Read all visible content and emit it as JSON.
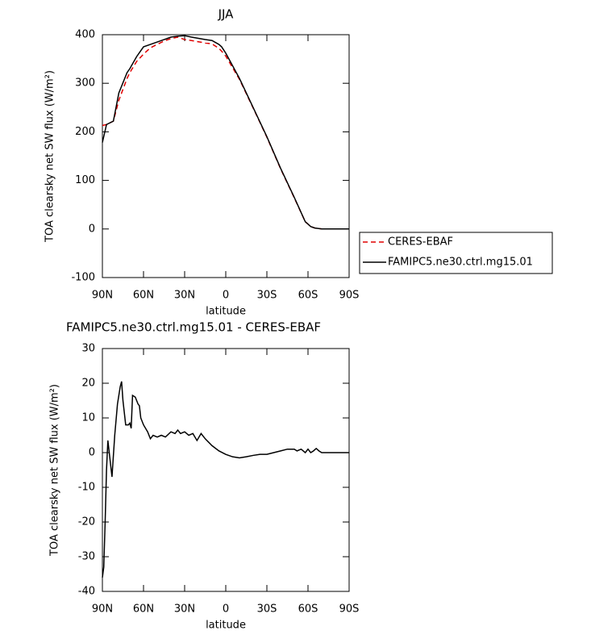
{
  "chart_data": [
    {
      "type": "line",
      "title": "JJA",
      "xlabel": "latitude",
      "ylabel": "TOA clearsky net SW flux (W/m²)",
      "x": [
        90,
        87,
        82,
        78,
        72,
        70,
        65,
        60,
        55,
        50,
        45,
        40,
        35,
        30,
        25,
        15,
        10,
        5,
        3,
        0,
        -10,
        -20,
        -30,
        -40,
        -50,
        -58,
        -62,
        -65,
        -70,
        -90
      ],
      "series": [
        {
          "name": "CERES-EBAF",
          "color": "#e00000",
          "linestyle": "dashed",
          "values": [
            213,
            215,
            222,
            265,
            310,
            322,
            345,
            360,
            373,
            380,
            387,
            392,
            395,
            390,
            388,
            383,
            381,
            372,
            366,
            356,
            308,
            249,
            189,
            124,
            64,
            15,
            5,
            2,
            0,
            0
          ]
        },
        {
          "name": "FAMIPC5.ne30.ctrl.mg15.01",
          "color": "#000000",
          "linestyle": "solid",
          "values": [
            178,
            215,
            222,
            280,
            322,
            330,
            355,
            375,
            380,
            385,
            390,
            395,
            397,
            398,
            395,
            390,
            388,
            380,
            375,
            362,
            310,
            250,
            190,
            125,
            65,
            15,
            5,
            2,
            0,
            0
          ]
        }
      ],
      "xlim": [
        90,
        -90
      ],
      "xticks": [
        {
          "value": 90,
          "label": "90N"
        },
        {
          "value": 60,
          "label": "60N"
        },
        {
          "value": 30,
          "label": "30N"
        },
        0,
        {
          "value": -30,
          "label": "30S"
        },
        {
          "value": -60,
          "label": "60S"
        },
        {
          "value": -90,
          "label": "90S"
        }
      ],
      "ylim": [
        -100,
        400
      ],
      "yticks": [
        -100,
        0,
        100,
        200,
        300,
        400
      ],
      "legend": "right"
    },
    {
      "type": "line",
      "title": "FAMIPC5.ne30.ctrl.mg15.01 - CERES-EBAF",
      "xlabel": "latitude",
      "ylabel": "TOA clearsky net SW flux (W/m²)",
      "x": [
        90,
        89,
        88,
        87,
        86,
        85,
        83,
        81,
        79,
        77,
        76,
        75,
        73,
        71,
        70,
        69,
        68,
        66,
        64,
        63,
        62,
        60,
        57,
        55,
        53,
        50,
        47,
        44,
        40,
        37,
        35,
        33,
        30,
        27,
        24,
        21,
        18,
        15,
        10,
        5,
        0,
        -5,
        -10,
        -15,
        -20,
        -25,
        -30,
        -35,
        -40,
        -45,
        -50,
        -52,
        -55,
        -58,
        -60,
        -62,
        -64,
        -66,
        -68,
        -70,
        -75,
        -80,
        -90
      ],
      "series": [
        {
          "color": "#000000",
          "linestyle": "solid",
          "values": [
            -36,
            -33,
            -20,
            -5,
            3.5,
            0,
            -7,
            5,
            14,
            19,
            20.5,
            15,
            8,
            8,
            8.5,
            7,
            16.5,
            16,
            14,
            13.5,
            10,
            8,
            6,
            4,
            5,
            4.5,
            5,
            4.5,
            6,
            5.5,
            6.5,
            5.5,
            6,
            5,
            5.5,
            3.5,
            5.5,
            4,
            2,
            0.5,
            -0.5,
            -1.2,
            -1.5,
            -1.2,
            -0.8,
            -0.5,
            -0.5,
            0,
            0.5,
            1,
            1,
            0.5,
            1,
            0,
            1,
            0,
            0.5,
            1.2,
            0.5,
            0,
            0,
            0,
            0
          ]
        }
      ],
      "xlim": [
        90,
        -90
      ],
      "xticks": [
        {
          "value": 90,
          "label": "90N"
        },
        {
          "value": 60,
          "label": "60N"
        },
        {
          "value": 30,
          "label": "30N"
        },
        0,
        {
          "value": -30,
          "label": "30S"
        },
        {
          "value": -60,
          "label": "60S"
        },
        {
          "value": -90,
          "label": "90S"
        }
      ],
      "ylim": [
        -40,
        30
      ],
      "yticks": [
        -40,
        -30,
        -20,
        -10,
        0,
        10,
        20,
        30
      ]
    }
  ]
}
